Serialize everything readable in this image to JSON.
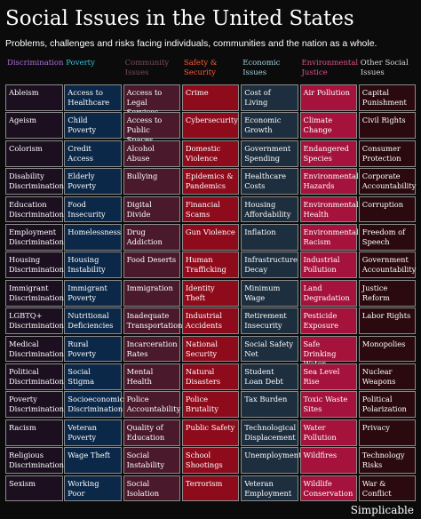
{
  "header": {
    "title": "Social Issues in the United States",
    "subtitle": "Problems, challenges and risks facing individuals, communities and the nation as a whole."
  },
  "columns": [
    {
      "header": "Discrimination",
      "items": [
        "Ableism",
        "Ageism",
        "Colorism",
        "Disability Discrimination",
        "Education Discrimination",
        "Employment Discrimination",
        "Housing Discrimination",
        "Immigrant Discrimination",
        "LGBTQ+ Discrimination",
        "Medical Discrimination",
        "Political Discrimination",
        "Poverty Discrimination",
        "Racism",
        "Religious Discrimination",
        "Sexism"
      ]
    },
    {
      "header": "Poverty",
      "items": [
        "Access to Healthcare",
        "Child Poverty",
        "Credit Access",
        "Elderly Poverty",
        "Food Insecurity",
        "Homelessness",
        "Housing Instability",
        "Immigrant Poverty",
        "Nutritional Deficiencies",
        "Rural Poverty",
        "Social Stigma",
        "Socioeconomic Discrimination",
        "Veteran Poverty",
        "Wage Theft",
        "Working Poor"
      ]
    },
    {
      "header": "Community Issues",
      "items": [
        "Access to Legal Services",
        "Access to Public Spaces",
        "Alcohol Abuse",
        "Bullying",
        "Digital Divide",
        "Drug Addiction",
        "Food Deserts",
        "Immigration",
        "Inadequate Transportation",
        "Incarceration Rates",
        "Mental Health",
        "Police Accountability",
        "Quality of Education",
        "Social Instability",
        "Social Isolation"
      ]
    },
    {
      "header": "Safety & Security",
      "items": [
        "Crime",
        "Cybersecurity",
        "Domestic Violence",
        "Epidemics & Pandemics",
        "Financial Scams",
        "Gun Violence",
        "Human Trafficking",
        "Identity Theft",
        "Industrial Accidents",
        "National Security",
        "Natural Disasters",
        "Police Brutality",
        "Public Safety",
        "School Shootings",
        "Terrorism"
      ]
    },
    {
      "header": "Economic Issues",
      "items": [
        "Cost of Living",
        "Economic Growth",
        "Government Spending",
        "Healthcare Costs",
        "Housing Affordability",
        "Inflation",
        "Infrastructure Decay",
        "Minimum Wage",
        "Retirement Insecurity",
        "Social Safety Net",
        "Student Loan Debt",
        "Tax Burden",
        "Technological Displacement",
        "Unemployment",
        "Veteran Employment"
      ]
    },
    {
      "header": "Environmental Justice",
      "items": [
        "Air Pollution",
        "Climate Change",
        "Endangered Species",
        "Environmental Hazards",
        "Environmental Health",
        "Environmental Racism",
        "Industrial Pollution",
        "Land Degradation",
        "Pesticide Exposure",
        "Safe Drinking Water",
        "Sea Level Rise",
        "Toxic Waste Sites",
        "Water Pollution",
        "Wildfires",
        "Wildlife Conservation"
      ]
    },
    {
      "header": "Other Social Issues",
      "items": [
        "Capital Punishment",
        "Civil Rights",
        "Consumer Protection",
        "Corporate Accountability",
        "Corruption",
        "Freedom of Speech",
        "Government Accountability",
        "Justice Reform",
        "Labor Rights",
        "Monopolies",
        "Nuclear Weapons",
        "Political Polarization",
        "Privacy",
        "Technology Risks",
        "War & Conflict"
      ]
    }
  ],
  "footer": "Simplicable"
}
